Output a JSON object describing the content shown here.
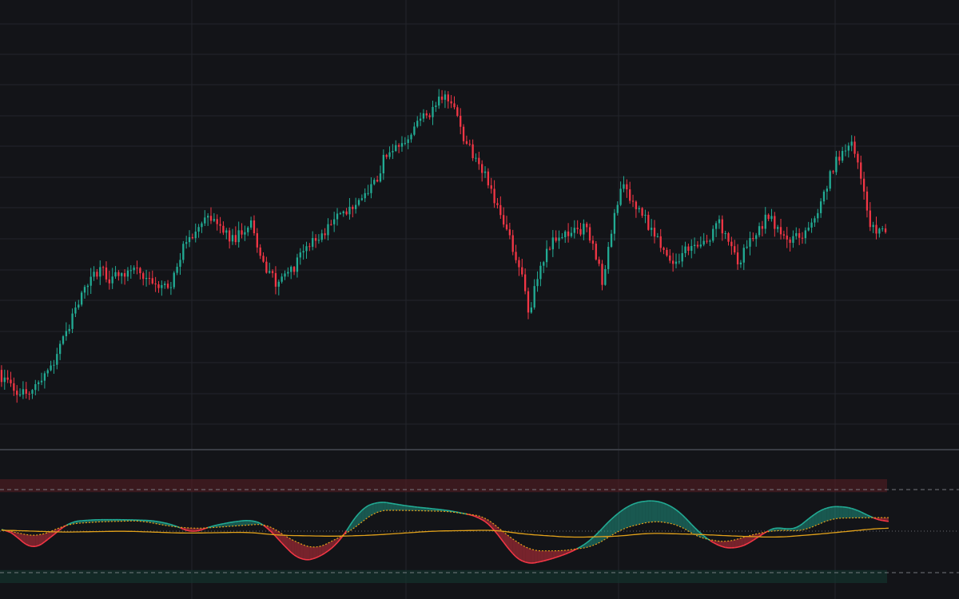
{
  "colors": {
    "background": "#131418",
    "grid": "#23252b",
    "separator": "#3a3d44",
    "up": "#22ab94",
    "down": "#f23645",
    "signal": "#e3a21a",
    "band_top": "#5b1e24",
    "band_bottom": "#143a33",
    "dashed": "#8c8f96"
  },
  "chart_data": [
    {
      "type": "candlestick",
      "grid": true,
      "bars": 288,
      "ylim": [
        0,
        560
      ],
      "series": [
        {
          "anchors": [
            [
              0,
              470
            ],
            [
              7,
              492
            ],
            [
              12,
              488
            ],
            [
              18,
              455
            ],
            [
              26,
              375
            ],
            [
              33,
              335
            ],
            [
              36,
              350
            ],
            [
              40,
              345
            ],
            [
              45,
              340
            ],
            [
              52,
              355
            ],
            [
              56,
              360
            ],
            [
              60,
              305
            ],
            [
              64,
              295
            ],
            [
              66,
              275
            ],
            [
              70,
              275
            ],
            [
              76,
              300
            ],
            [
              82,
              280
            ],
            [
              86,
              330
            ],
            [
              90,
              355
            ],
            [
              95,
              340
            ],
            [
              100,
              310
            ],
            [
              104,
              300
            ],
            [
              110,
              270
            ],
            [
              116,
              255
            ],
            [
              122,
              232
            ],
            [
              126,
              190
            ],
            [
              132,
              172
            ],
            [
              140,
              140
            ],
            [
              145,
              118
            ],
            [
              148,
              140
            ],
            [
              152,
              180
            ],
            [
              158,
              220
            ],
            [
              164,
              275
            ],
            [
              170,
              345
            ],
            [
              172,
              395
            ],
            [
              176,
              335
            ],
            [
              180,
              300
            ],
            [
              186,
              290
            ],
            [
              191,
              285
            ],
            [
              196,
              350
            ],
            [
              202,
              232
            ],
            [
              206,
              252
            ],
            [
              210,
              275
            ],
            [
              214,
              300
            ],
            [
              219,
              330
            ],
            [
              225,
              305
            ],
            [
              230,
              300
            ],
            [
              234,
              280
            ],
            [
              240,
              330
            ],
            [
              245,
              295
            ],
            [
              250,
              270
            ],
            [
              256,
              300
            ],
            [
              263,
              288
            ],
            [
              267,
              252
            ],
            [
              272,
              200
            ],
            [
              276,
              180
            ],
            [
              278,
              188
            ],
            [
              283,
              283
            ],
            [
              288,
              290
            ]
          ]
        }
      ]
    },
    {
      "type": "oscillator",
      "bands": {
        "top": [
          100,
          75
        ],
        "bottom": [
          -75,
          -100
        ]
      },
      "levels_dashed": [
        80,
        -80
      ],
      "level_dotted": 0,
      "series": [
        {
          "name": "",
          "color": "fill-up-down",
          "anchors": [
            [
              0,
              8
            ],
            [
              4,
              -5
            ],
            [
              10,
              -38
            ],
            [
              16,
              -12
            ],
            [
              22,
              18
            ],
            [
              30,
              22
            ],
            [
              40,
              22
            ],
            [
              50,
              20
            ],
            [
              57,
              10
            ],
            [
              62,
              -5
            ],
            [
              67,
              8
            ],
            [
              75,
              18
            ],
            [
              82,
              22
            ],
            [
              86,
              10
            ],
            [
              92,
              -30
            ],
            [
              97,
              -58
            ],
            [
              103,
              -52
            ],
            [
              110,
              -20
            ],
            [
              116,
              40
            ],
            [
              122,
              58
            ],
            [
              132,
              48
            ],
            [
              145,
              40
            ],
            [
              155,
              28
            ],
            [
              160,
              5
            ],
            [
              165,
              -40
            ],
            [
              170,
              -65
            ],
            [
              178,
              -55
            ],
            [
              186,
              -38
            ],
            [
              192,
              -15
            ],
            [
              198,
              25
            ],
            [
              205,
              55
            ],
            [
              213,
              60
            ],
            [
              220,
              40
            ],
            [
              225,
              5
            ],
            [
              232,
              -28
            ],
            [
              238,
              -35
            ],
            [
              244,
              -20
            ],
            [
              248,
              0
            ],
            [
              253,
              10
            ],
            [
              257,
              -2
            ],
            [
              262,
              25
            ],
            [
              268,
              48
            ],
            [
              276,
              46
            ],
            [
              282,
              28
            ],
            [
              286,
              18
            ]
          ]
        },
        {
          "name": "",
          "color": "fill-up-down-dotted",
          "anchors": [
            [
              0,
              5
            ],
            [
              6,
              -5
            ],
            [
              12,
              -10
            ],
            [
              22,
              14
            ],
            [
              32,
              18
            ],
            [
              45,
              20
            ],
            [
              56,
              8
            ],
            [
              64,
              5
            ],
            [
              76,
              10
            ],
            [
              86,
              14
            ],
            [
              95,
              -20
            ],
            [
              102,
              -35
            ],
            [
              112,
              -5
            ],
            [
              122,
              40
            ],
            [
              130,
              40
            ],
            [
              145,
              38
            ],
            [
              157,
              28
            ],
            [
              165,
              -12
            ],
            [
              172,
              -38
            ],
            [
              182,
              -38
            ],
            [
              192,
              -30
            ],
            [
              202,
              6
            ],
            [
              212,
              20
            ],
            [
              220,
              12
            ],
            [
              226,
              -12
            ],
            [
              235,
              -22
            ],
            [
              245,
              -5
            ],
            [
              252,
              2
            ],
            [
              260,
              0
            ],
            [
              270,
              25
            ],
            [
              285,
              26
            ]
          ]
        },
        {
          "name": "",
          "color": "signal",
          "anchors": [
            [
              0,
              2
            ],
            [
              20,
              -2
            ],
            [
              40,
              0
            ],
            [
              60,
              -4
            ],
            [
              80,
              -2
            ],
            [
              90,
              -8
            ],
            [
              108,
              -10
            ],
            [
              120,
              -8
            ],
            [
              140,
              0
            ],
            [
              160,
              2
            ],
            [
              170,
              -6
            ],
            [
              185,
              -12
            ],
            [
              200,
              -10
            ],
            [
              210,
              -4
            ],
            [
              225,
              -6
            ],
            [
              240,
              -10
            ],
            [
              252,
              -12
            ],
            [
              265,
              -6
            ],
            [
              286,
              6
            ]
          ]
        }
      ]
    }
  ]
}
